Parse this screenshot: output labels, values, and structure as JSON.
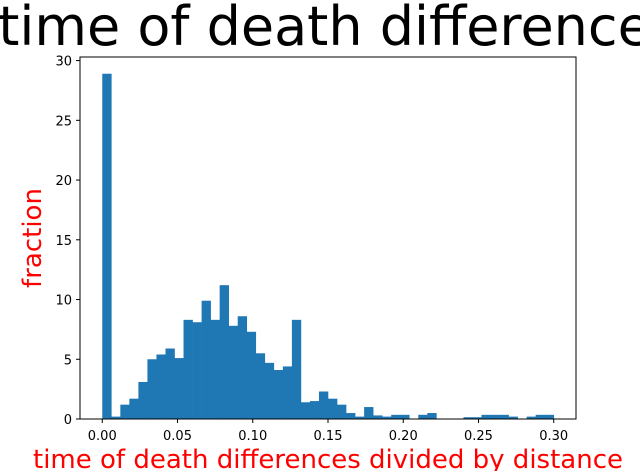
{
  "chart_data": {
    "type": "bar",
    "title": "Histogram of time of death differences by distance",
    "xlabel": "time of death differences divided by distance",
    "ylabel": "fraction",
    "xlim": [
      -0.0148,
      0.3148
    ],
    "ylim": [
      0,
      30.3
    ],
    "xticks": [
      "0.00",
      "0.05",
      "0.10",
      "0.15",
      "0.20",
      "0.25",
      "0.30"
    ],
    "yticks": [
      "0",
      "5",
      "10",
      "15",
      "20",
      "25",
      "30"
    ],
    "bin_width": 0.006,
    "bins_start": [
      0.0,
      0.006,
      0.012,
      0.018,
      0.024,
      0.03,
      0.036,
      0.042,
      0.048,
      0.054,
      0.06,
      0.066,
      0.072,
      0.078,
      0.084,
      0.09,
      0.096,
      0.102,
      0.108,
      0.114,
      0.12,
      0.126,
      0.132,
      0.138,
      0.144,
      0.15,
      0.156,
      0.162,
      0.168,
      0.174,
      0.18,
      0.186,
      0.192,
      0.198,
      0.204,
      0.21,
      0.216,
      0.222,
      0.228,
      0.234,
      0.24,
      0.246,
      0.252,
      0.258,
      0.264,
      0.27,
      0.276,
      0.282,
      0.288,
      0.294
    ],
    "values": [
      28.9,
      0.2,
      1.2,
      1.7,
      3.1,
      5.0,
      5.4,
      5.9,
      5.1,
      8.3,
      8.1,
      9.9,
      8.3,
      11.2,
      7.8,
      8.6,
      7.3,
      5.5,
      4.7,
      4.1,
      4.4,
      8.3,
      1.4,
      1.5,
      2.3,
      1.7,
      1.2,
      0.5,
      0.2,
      1.0,
      0.3,
      0.2,
      0.35,
      0.35,
      0.0,
      0.35,
      0.5,
      0.0,
      0.0,
      0.0,
      0.15,
      0.15,
      0.35,
      0.35,
      0.35,
      0.2,
      0.0,
      0.2,
      0.35,
      0.35
    ],
    "grid": false,
    "colors": {
      "bar": "#1f77b4",
      "axis_label": "#ff0000"
    }
  }
}
